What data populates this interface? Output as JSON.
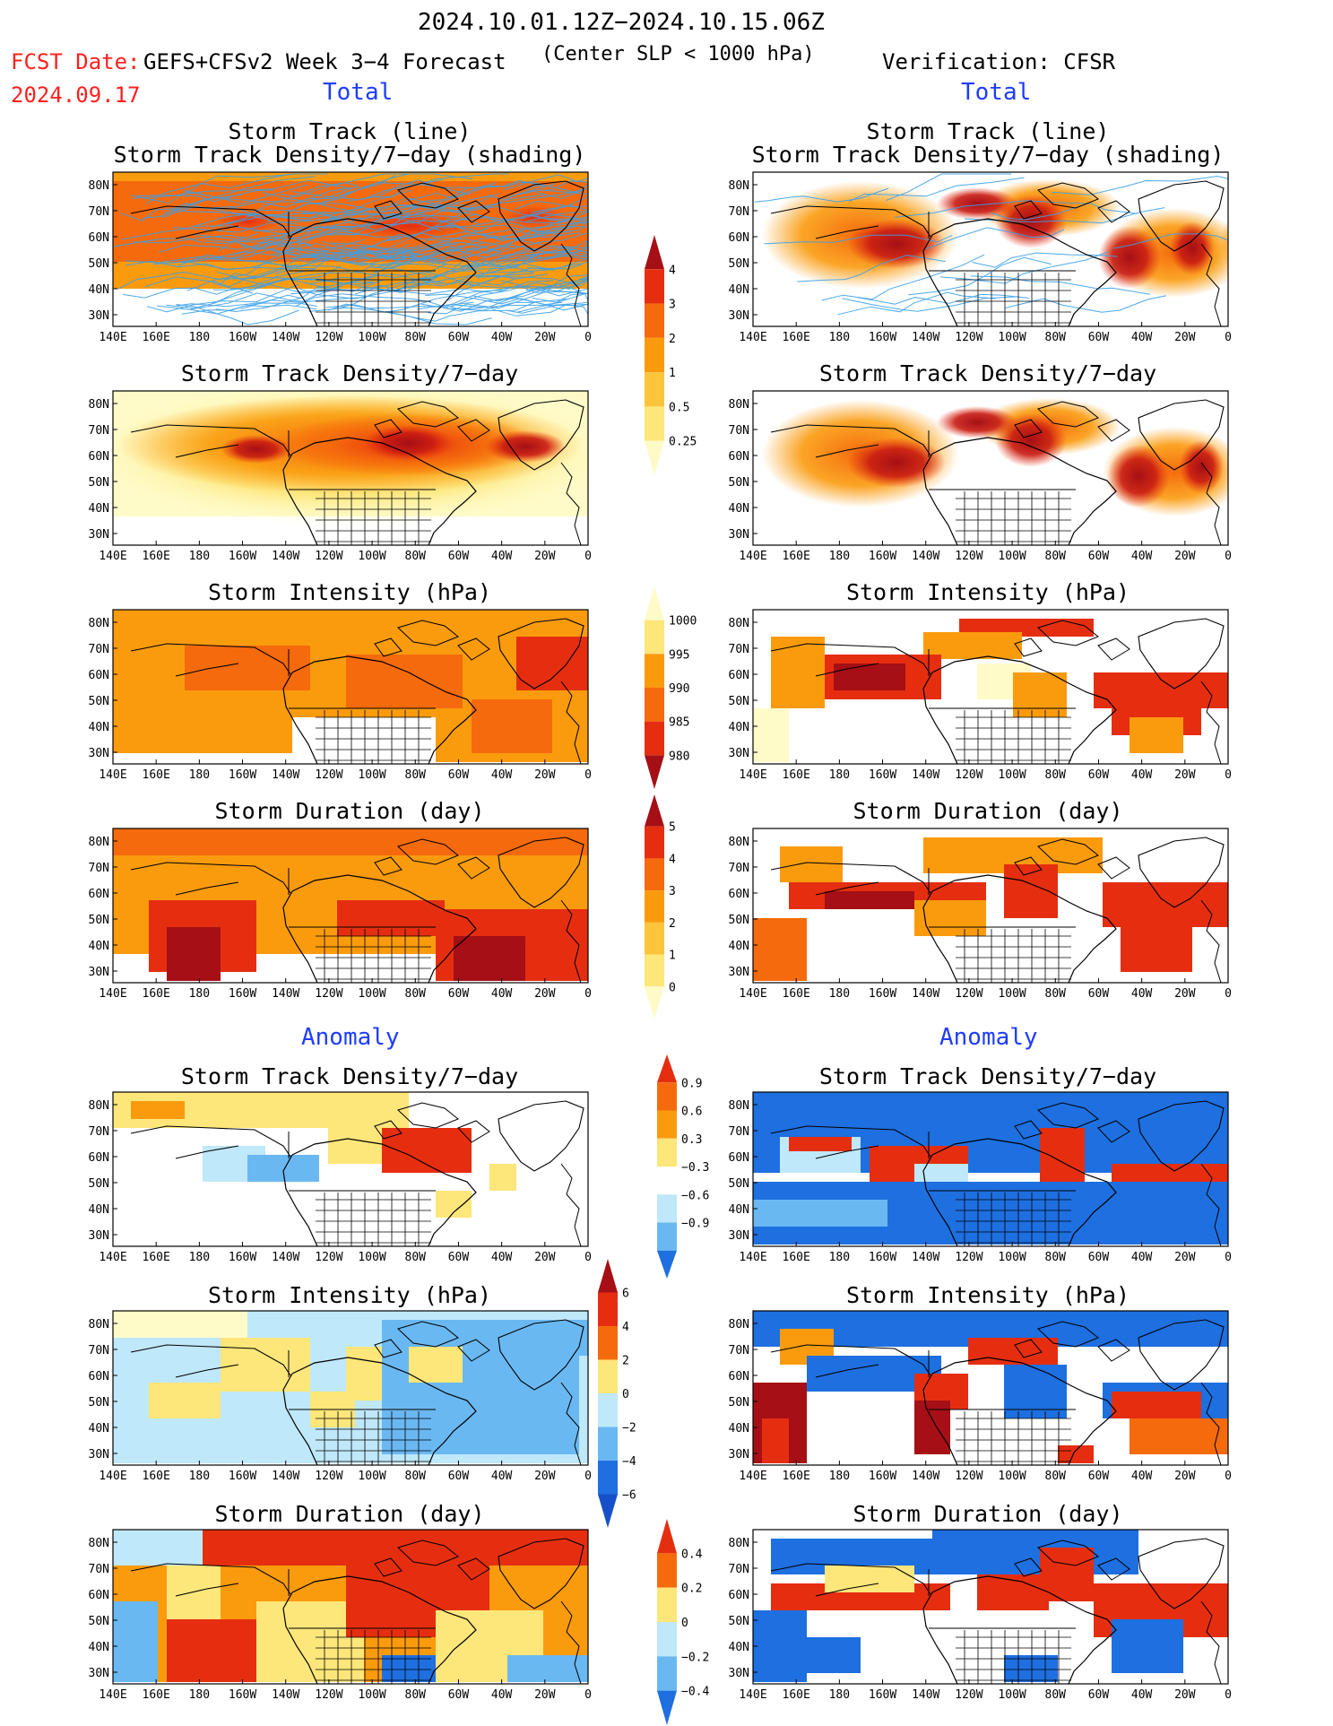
{
  "header": {
    "period": "2024.10.01.12Z−2024.10.15.06Z",
    "fcst_date_label": "FCST Date:",
    "fcst_date_value": "2024.09.17",
    "model": "GEFS+CFSv2 Week 3−4 Forecast",
    "criterion": "(Center SLP < 1000 hPa)",
    "verification": "Verification: CFSR"
  },
  "sections": {
    "total_left": "Total",
    "total_right": "Total",
    "anomaly_left": "Anomaly",
    "anomaly_right": "Anomaly"
  },
  "panel_titles": {
    "track_line": "Storm Track (line)",
    "track_shading": "Storm Track Density/7−day (shading)",
    "density": "Storm Track Density/7−day",
    "intensity": "Storm Intensity (hPa)",
    "duration": "Storm Duration (day)"
  },
  "axes": {
    "lat_ticks": [
      "80N",
      "70N",
      "60N",
      "50N",
      "40N",
      "30N"
    ],
    "lon_ticks": [
      "140E",
      "160E",
      "180",
      "160W",
      "140W",
      "120W",
      "100W",
      "80W",
      "60W",
      "40W",
      "20W",
      "0"
    ]
  },
  "colorbars": {
    "density_total": {
      "labels": [
        "4",
        "3",
        "2",
        "1",
        "0.5",
        "0.25"
      ],
      "colors": [
        "#a50f15",
        "#e52e10",
        "#f56a0c",
        "#fa9b0e",
        "#fcc43a",
        "#fde67a",
        "#fffbc8"
      ]
    },
    "intensity_total": {
      "labels": [
        "1000",
        "995",
        "990",
        "985",
        "980"
      ],
      "colors": [
        "#fffbc8",
        "#fde67a",
        "#fa9b0e",
        "#f56a0c",
        "#e52e10",
        "#a50f15"
      ]
    },
    "duration_total": {
      "labels": [
        "5",
        "4",
        "3",
        "2",
        "1",
        "0"
      ],
      "colors": [
        "#a50f15",
        "#e52e10",
        "#f56a0c",
        "#fa9b0e",
        "#fcc43a",
        "#fde67a",
        "#fffbc8"
      ]
    },
    "density_anom": {
      "labels": [
        "0.9",
        "0.6",
        "0.3",
        "−0.3",
        "−0.6",
        "−0.9"
      ],
      "colors": [
        "#e52e10",
        "#f56a0c",
        "#fa9b0e",
        "#fde67a",
        "#ffffff",
        "#bfe8fa",
        "#6ab8f2",
        "#1e6fe0"
      ]
    },
    "intensity_anom": {
      "labels": [
        "6",
        "4",
        "2",
        "0",
        "−2",
        "−4",
        "−6"
      ],
      "colors": [
        "#a50f15",
        "#e52e10",
        "#f56a0c",
        "#fde67a",
        "#bfe8fa",
        "#6ab8f2",
        "#1e6fe0",
        "#1550c8"
      ]
    },
    "duration_anom": {
      "labels": [
        "0.4",
        "0.2",
        "0",
        "−0.2",
        "−0.4"
      ],
      "colors": [
        "#e52e10",
        "#f56a0c",
        "#fde67a",
        "#bfe8fa",
        "#6ab8f2",
        "#1e6fe0"
      ]
    }
  },
  "palette": {
    "dark_red": "#a50f15",
    "red": "#e52e10",
    "orange_red": "#f56a0c",
    "orange": "#fa9b0e",
    "yellow": "#fde67a",
    "pale": "#fffbc8",
    "light_blue": "#bfe8fa",
    "mid_blue": "#6ab8f2",
    "blue": "#1e6fe0",
    "track_line": "#3aa0e8"
  }
}
